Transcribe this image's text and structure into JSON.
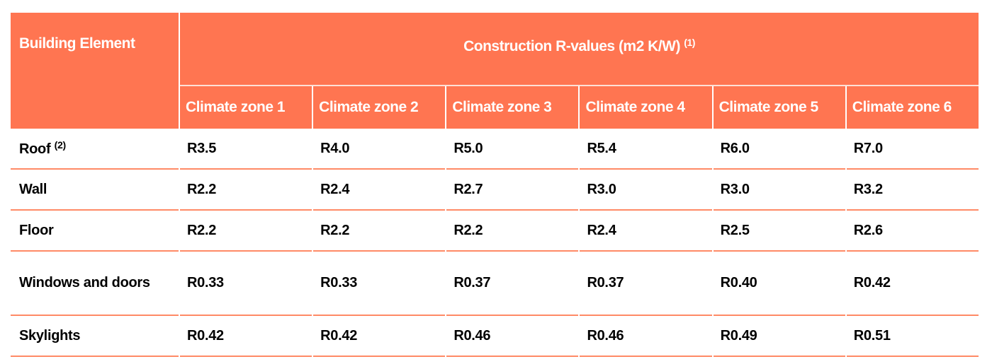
{
  "table": {
    "header": {
      "building_element": "Building Element",
      "group_title": "Construction R-values (m2 K/W)",
      "group_note": "(1)",
      "zones": [
        "Climate zone 1",
        "Climate zone 2",
        "Climate zone 3",
        "Climate zone 4",
        "Climate zone 5",
        "Climate zone 6"
      ]
    },
    "rows": [
      {
        "element": "Roof",
        "note": "(2)",
        "values": [
          "R3.5",
          "R4.0",
          "R5.0",
          "R5.4",
          "R6.0",
          "R7.0"
        ]
      },
      {
        "element": "Wall",
        "note": "",
        "values": [
          "R2.2",
          "R2.4",
          "R2.7",
          "R3.0",
          "R3.0",
          "R3.2"
        ]
      },
      {
        "element": "Floor",
        "note": "",
        "values": [
          "R2.2",
          "R2.2",
          "R2.2",
          "R2.4",
          "R2.5",
          "R2.6"
        ]
      },
      {
        "element": "Windows and doors",
        "note": "",
        "values": [
          "R0.33",
          "R0.33",
          "R0.37",
          "R0.37",
          "R0.40",
          "R0.42"
        ]
      },
      {
        "element": "Skylights",
        "note": "",
        "values": [
          "R0.42",
          "R0.42",
          "R0.46",
          "R0.46",
          "R0.49",
          "R0.51"
        ]
      }
    ],
    "colors": {
      "header_bg": "#FF7551",
      "header_text": "#FFFFFF",
      "row_rule": "#FF8A66"
    }
  }
}
